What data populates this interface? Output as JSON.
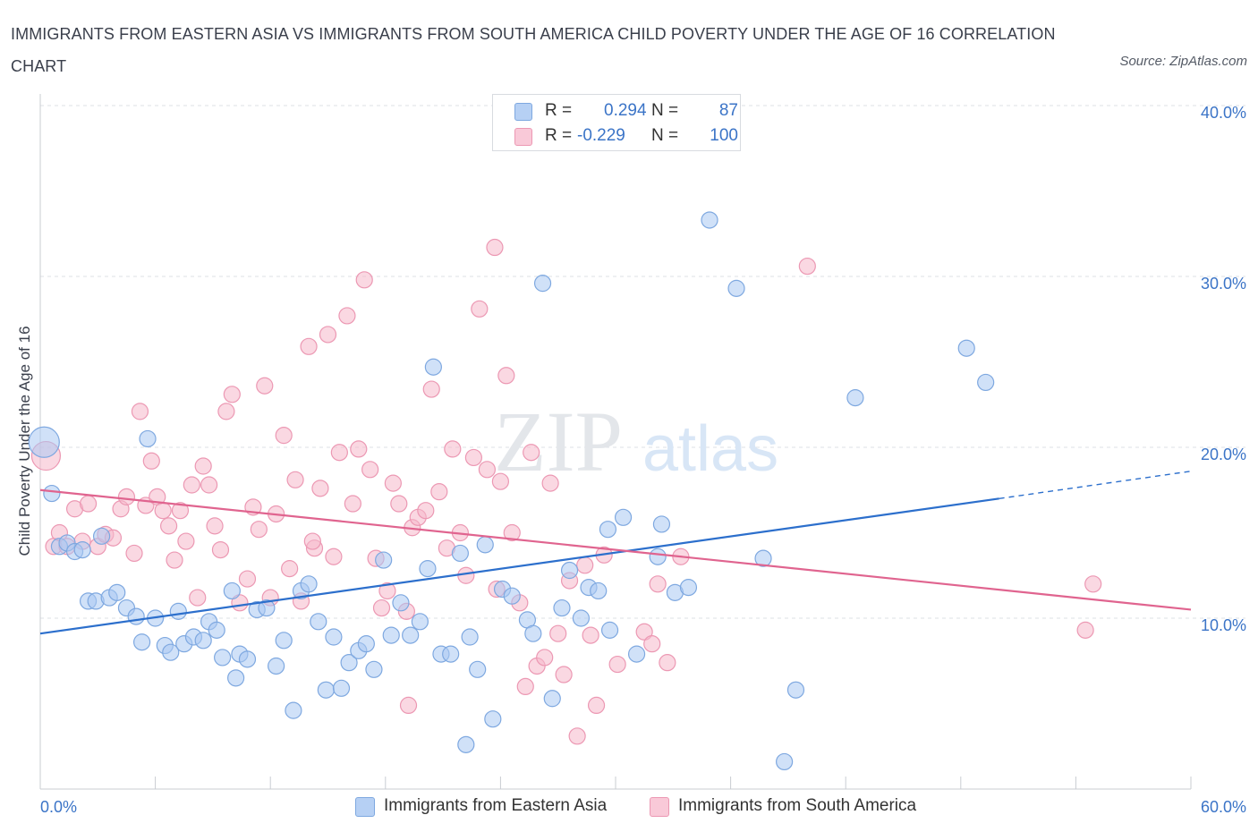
{
  "title": "IMMIGRANTS FROM EASTERN ASIA VS IMMIGRANTS FROM SOUTH AMERICA CHILD POVERTY UNDER THE AGE OF 16 CORRELATION CHART",
  "source": "Source: ZipAtlas.com",
  "watermark": {
    "zip": "ZIP",
    "atlas": "atlas"
  },
  "legend": {
    "r_label": "R =",
    "n_label": "N =",
    "rows": [
      {
        "r": "0.294",
        "n": "87",
        "color": "#a9c8f2"
      },
      {
        "r": "-0.229",
        "n": "100",
        "color": "#f6b8cb"
      }
    ]
  },
  "colors": {
    "blue_fill": "#a9c8f2",
    "blue_stroke": "#7ea8e0",
    "blue_line": "#2c6fcc",
    "pink_fill": "#f6b8cb",
    "pink_stroke": "#ec98b3",
    "pink_line": "#e0648f",
    "axis_text": "#3b74c7",
    "grid": "#dde1e6"
  },
  "chart_data": {
    "type": "scatter",
    "title": "IMMIGRANTS FROM EASTERN ASIA VS IMMIGRANTS FROM SOUTH AMERICA CHILD POVERTY UNDER THE AGE OF 16 CORRELATION CHART",
    "xlabel": "",
    "ylabel": "Child Poverty Under the Age of 16",
    "xlim": [
      0,
      60
    ],
    "ylim": [
      0,
      40
    ],
    "x_tick_labels": [
      "0.0%",
      "60.0%"
    ],
    "y_ticks": [
      10,
      20,
      30,
      40
    ],
    "y_tick_labels": [
      "10.0%",
      "20.0%",
      "30.0%",
      "40.0%"
    ],
    "grid": true,
    "legend_position": "top-center",
    "series": [
      {
        "name": "Immigrants from Eastern Asia",
        "r": 0.294,
        "n": 87,
        "trend": {
          "x0": 0,
          "y0": 9.1,
          "x1": 50,
          "y1": 17.0,
          "extend_dashed_to": 60,
          "y_at_extend": 18.6
        },
        "points": [
          [
            0.2,
            20.3
          ],
          [
            0.6,
            17.3
          ],
          [
            1.0,
            14.2
          ],
          [
            1.4,
            14.4
          ],
          [
            1.8,
            13.9
          ],
          [
            2.2,
            14.0
          ],
          [
            2.5,
            11.0
          ],
          [
            2.9,
            11.0
          ],
          [
            3.2,
            14.8
          ],
          [
            3.6,
            11.2
          ],
          [
            4.0,
            11.5
          ],
          [
            4.5,
            10.6
          ],
          [
            5.0,
            10.1
          ],
          [
            5.3,
            8.6
          ],
          [
            5.6,
            20.5
          ],
          [
            6.0,
            10.0
          ],
          [
            6.5,
            8.4
          ],
          [
            6.8,
            8.0
          ],
          [
            7.2,
            10.4
          ],
          [
            7.5,
            8.5
          ],
          [
            8.0,
            8.9
          ],
          [
            8.5,
            8.7
          ],
          [
            8.8,
            9.8
          ],
          [
            9.2,
            9.3
          ],
          [
            9.5,
            7.7
          ],
          [
            10.0,
            11.6
          ],
          [
            10.4,
            7.9
          ],
          [
            10.8,
            7.6
          ],
          [
            11.3,
            10.5
          ],
          [
            11.8,
            10.6
          ],
          [
            12.3,
            7.2
          ],
          [
            12.7,
            8.7
          ],
          [
            13.2,
            4.6
          ],
          [
            13.6,
            11.6
          ],
          [
            14.0,
            12.0
          ],
          [
            14.5,
            9.8
          ],
          [
            14.9,
            5.8
          ],
          [
            15.3,
            8.9
          ],
          [
            15.7,
            5.9
          ],
          [
            16.1,
            7.4
          ],
          [
            16.6,
            8.1
          ],
          [
            17.0,
            8.5
          ],
          [
            17.4,
            7.0
          ],
          [
            17.9,
            13.4
          ],
          [
            18.3,
            9.0
          ],
          [
            18.8,
            10.9
          ],
          [
            19.3,
            9.0
          ],
          [
            19.8,
            9.8
          ],
          [
            20.2,
            12.9
          ],
          [
            20.5,
            24.7
          ],
          [
            20.9,
            7.9
          ],
          [
            21.4,
            7.9
          ],
          [
            21.9,
            13.8
          ],
          [
            22.4,
            8.9
          ],
          [
            22.8,
            7.0
          ],
          [
            23.2,
            14.3
          ],
          [
            23.6,
            4.1
          ],
          [
            24.1,
            11.7
          ],
          [
            24.6,
            11.3
          ],
          [
            25.4,
            9.9
          ],
          [
            25.7,
            9.1
          ],
          [
            26.2,
            29.6
          ],
          [
            26.7,
            5.3
          ],
          [
            27.2,
            10.6
          ],
          [
            27.6,
            12.8
          ],
          [
            28.2,
            10.0
          ],
          [
            28.6,
            11.8
          ],
          [
            29.1,
            11.6
          ],
          [
            29.6,
            15.2
          ],
          [
            29.7,
            9.3
          ],
          [
            30.4,
            15.9
          ],
          [
            31.1,
            7.9
          ],
          [
            32.2,
            13.6
          ],
          [
            32.4,
            15.5
          ],
          [
            33.1,
            11.5
          ],
          [
            33.8,
            11.8
          ],
          [
            34.9,
            33.3
          ],
          [
            36.3,
            29.3
          ],
          [
            37.7,
            13.5
          ],
          [
            38.8,
            1.6
          ],
          [
            39.4,
            5.8
          ],
          [
            42.5,
            22.9
          ],
          [
            48.3,
            25.8
          ],
          [
            49.3,
            23.8
          ],
          [
            31.6,
            39.5
          ],
          [
            22.2,
            2.6
          ],
          [
            10.2,
            6.5
          ]
        ]
      },
      {
        "name": "Immigrants from South America",
        "r": -0.229,
        "n": 100,
        "trend": {
          "x0": 0,
          "y0": 17.5,
          "x1": 60,
          "y1": 10.5
        },
        "points": [
          [
            0.3,
            19.5
          ],
          [
            0.7,
            14.2
          ],
          [
            1.0,
            15.0
          ],
          [
            1.4,
            14.2
          ],
          [
            1.8,
            16.4
          ],
          [
            2.2,
            14.5
          ],
          [
            2.5,
            16.7
          ],
          [
            3.0,
            14.2
          ],
          [
            3.4,
            14.9
          ],
          [
            3.8,
            14.7
          ],
          [
            4.2,
            16.4
          ],
          [
            4.5,
            17.1
          ],
          [
            4.9,
            13.8
          ],
          [
            5.2,
            22.1
          ],
          [
            5.5,
            16.6
          ],
          [
            5.8,
            19.2
          ],
          [
            6.1,
            17.1
          ],
          [
            6.4,
            16.3
          ],
          [
            6.7,
            15.4
          ],
          [
            7.0,
            13.4
          ],
          [
            7.3,
            16.3
          ],
          [
            7.6,
            14.5
          ],
          [
            7.9,
            17.8
          ],
          [
            8.2,
            11.2
          ],
          [
            8.5,
            18.9
          ],
          [
            8.8,
            17.8
          ],
          [
            9.1,
            15.4
          ],
          [
            9.4,
            14.0
          ],
          [
            9.7,
            22.1
          ],
          [
            10.0,
            23.1
          ],
          [
            10.4,
            10.9
          ],
          [
            10.8,
            12.3
          ],
          [
            11.1,
            16.5
          ],
          [
            11.4,
            15.2
          ],
          [
            11.7,
            23.6
          ],
          [
            12.0,
            11.2
          ],
          [
            12.3,
            16.1
          ],
          [
            12.7,
            20.7
          ],
          [
            13.0,
            12.9
          ],
          [
            13.3,
            18.1
          ],
          [
            13.6,
            11.0
          ],
          [
            14.0,
            25.9
          ],
          [
            14.3,
            14.1
          ],
          [
            14.6,
            17.6
          ],
          [
            15.0,
            26.6
          ],
          [
            15.3,
            13.6
          ],
          [
            15.6,
            19.7
          ],
          [
            16.0,
            27.7
          ],
          [
            16.3,
            16.7
          ],
          [
            16.6,
            19.9
          ],
          [
            16.9,
            29.8
          ],
          [
            17.2,
            18.7
          ],
          [
            17.5,
            13.5
          ],
          [
            17.8,
            10.6
          ],
          [
            18.1,
            11.6
          ],
          [
            18.4,
            17.9
          ],
          [
            18.7,
            16.7
          ],
          [
            19.1,
            10.4
          ],
          [
            19.4,
            15.3
          ],
          [
            19.7,
            15.9
          ],
          [
            20.1,
            16.3
          ],
          [
            20.4,
            23.4
          ],
          [
            20.8,
            17.4
          ],
          [
            21.2,
            14.1
          ],
          [
            21.5,
            19.9
          ],
          [
            21.9,
            15.0
          ],
          [
            22.2,
            12.5
          ],
          [
            22.6,
            19.4
          ],
          [
            22.9,
            28.1
          ],
          [
            23.3,
            18.7
          ],
          [
            23.7,
            31.7
          ],
          [
            24.0,
            18.0
          ],
          [
            24.3,
            24.2
          ],
          [
            24.6,
            15.0
          ],
          [
            25.0,
            10.9
          ],
          [
            25.3,
            6.0
          ],
          [
            25.6,
            19.7
          ],
          [
            25.9,
            7.2
          ],
          [
            26.3,
            7.7
          ],
          [
            26.6,
            17.9
          ],
          [
            27.0,
            9.1
          ],
          [
            27.3,
            6.7
          ],
          [
            27.6,
            12.2
          ],
          [
            28.0,
            3.1
          ],
          [
            28.4,
            13.1
          ],
          [
            28.7,
            9.0
          ],
          [
            29.0,
            4.9
          ],
          [
            29.4,
            13.7
          ],
          [
            30.1,
            7.3
          ],
          [
            31.5,
            9.2
          ],
          [
            31.9,
            8.5
          ],
          [
            32.2,
            12.0
          ],
          [
            32.7,
            7.4
          ],
          [
            33.4,
            13.6
          ],
          [
            40.0,
            30.6
          ],
          [
            54.5,
            9.3
          ],
          [
            54.9,
            12.0
          ],
          [
            14.2,
            14.5
          ],
          [
            19.2,
            4.9
          ],
          [
            23.8,
            11.7
          ]
        ]
      }
    ]
  }
}
